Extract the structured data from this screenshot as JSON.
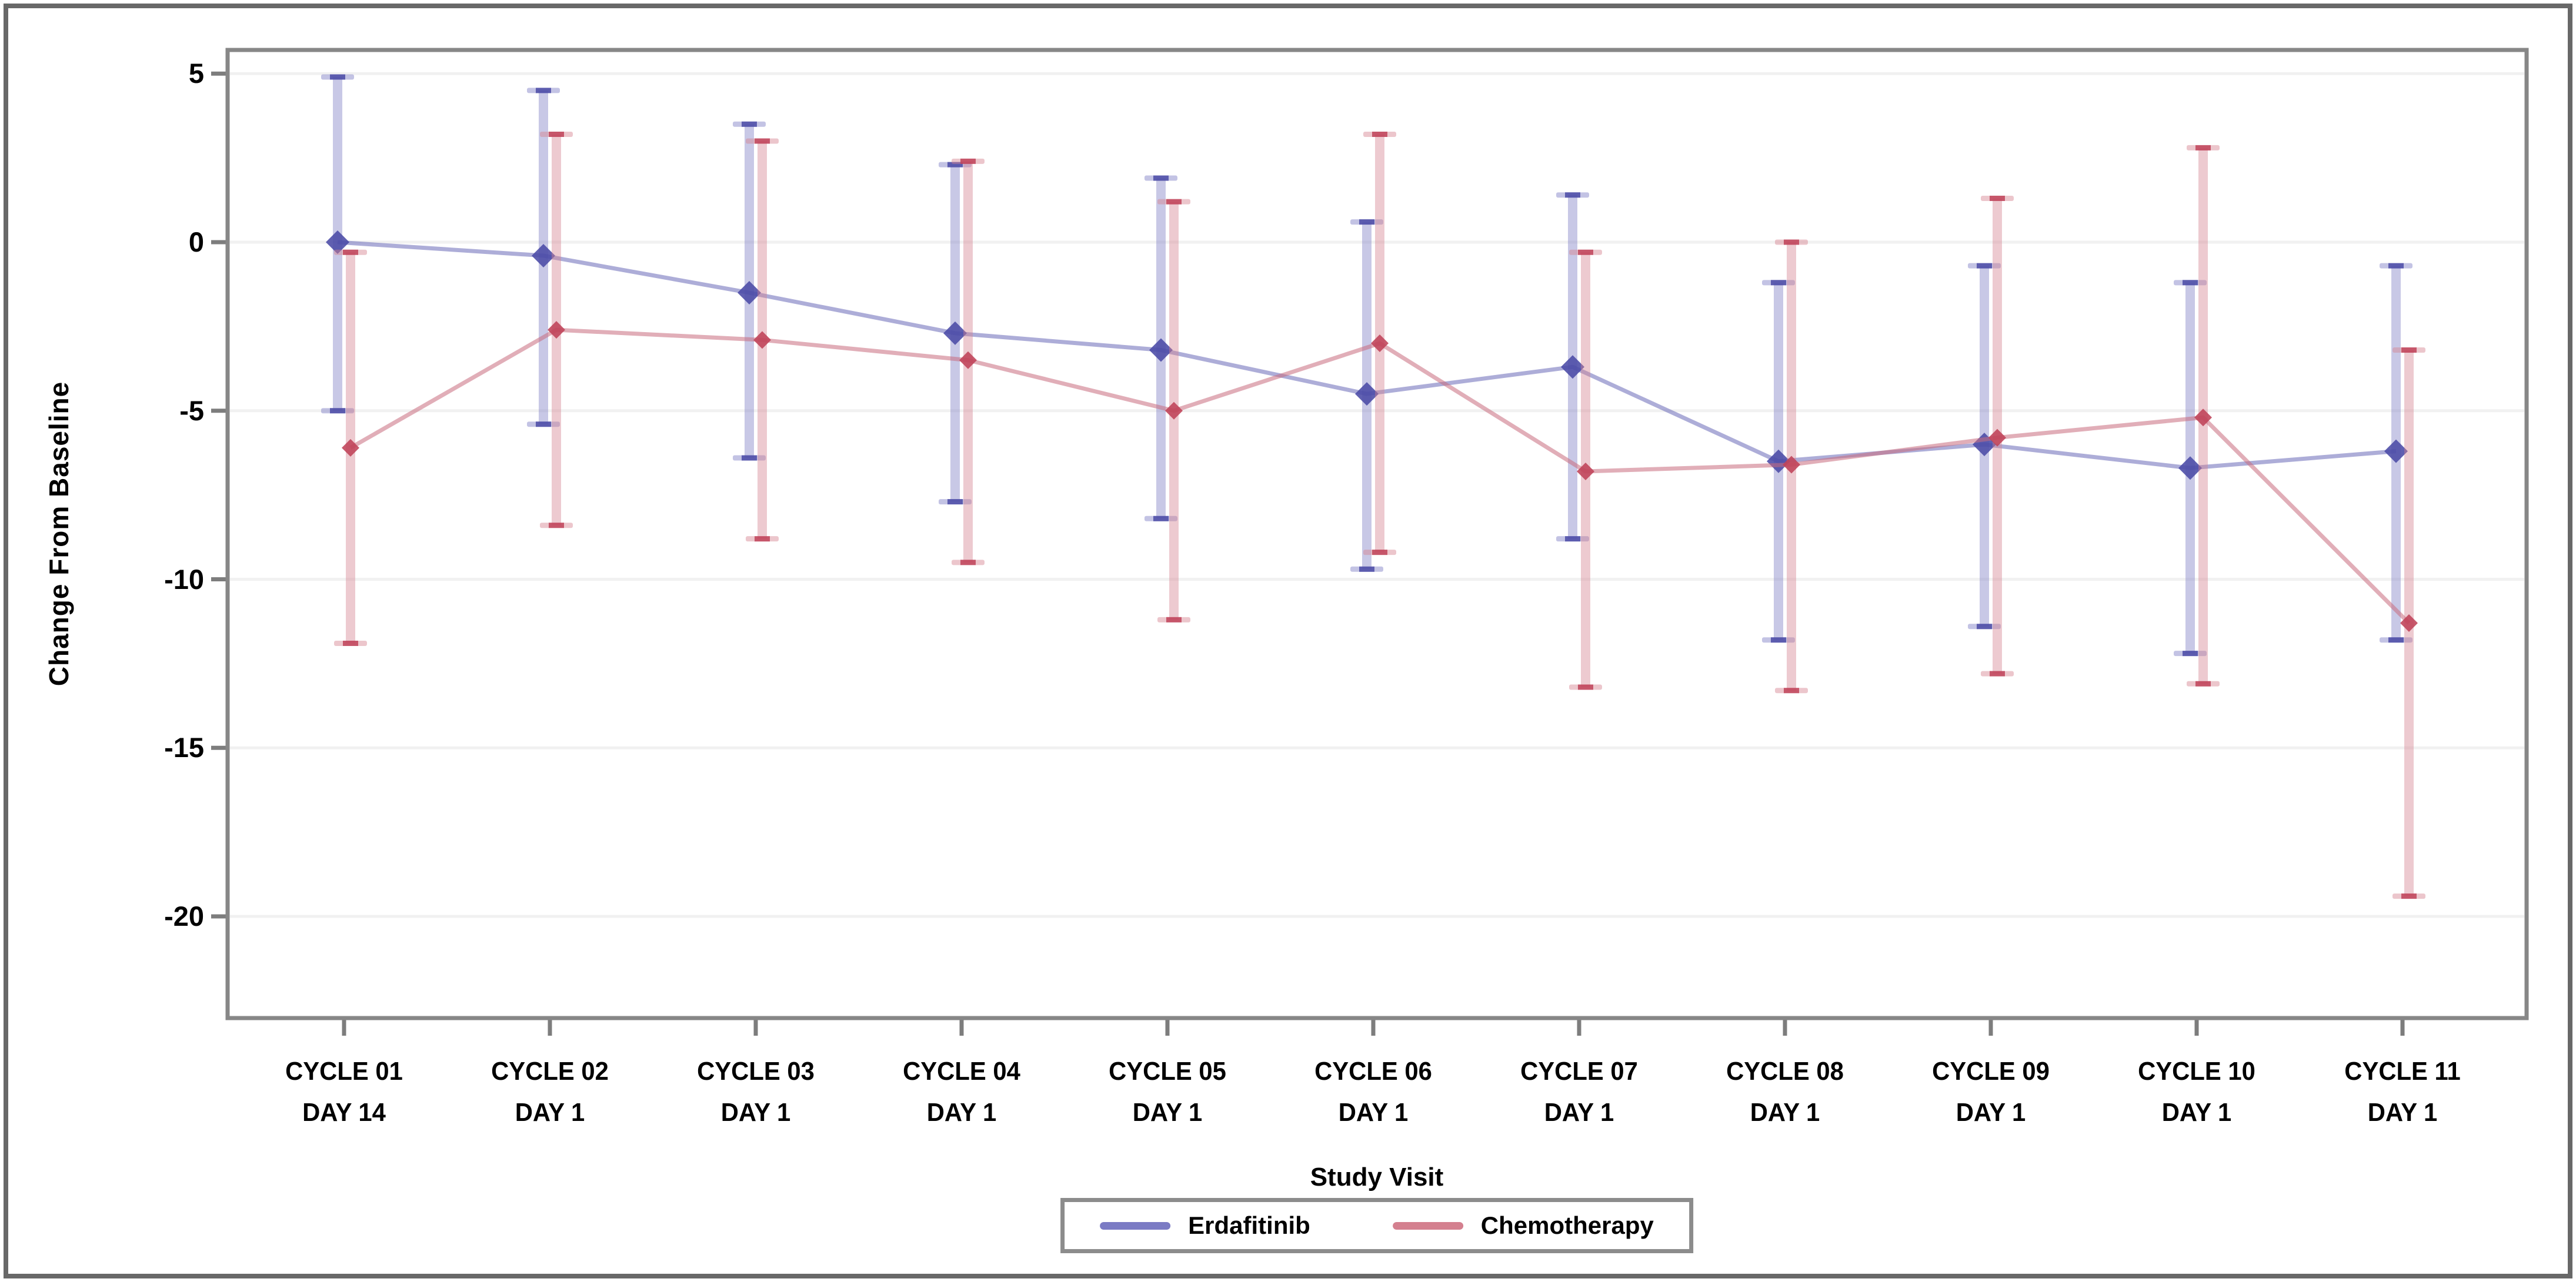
{
  "figure": {
    "background": "#ffffff",
    "outer_border_color": "#686868",
    "plot_border_color": "#878787",
    "gridline_color": "#f1f1f1",
    "tick_color": "#7d7d7d",
    "text_color": "#000000"
  },
  "chart_data": {
    "type": "line",
    "subtype": "means-with-error-bars",
    "title": "",
    "xlabel": "Study Visit",
    "ylabel": "Change From Baseline",
    "grid": true,
    "legend_position": "bottom-center",
    "ylim": [
      -23.2,
      5.7
    ],
    "y_ticks": [
      {
        "label": "5",
        "value": 5
      },
      {
        "label": "0",
        "value": 0
      },
      {
        "label": "-5",
        "value": -5
      },
      {
        "label": "-10",
        "value": -10
      },
      {
        "label": "-15",
        "value": -15
      },
      {
        "label": "-20",
        "value": -20
      }
    ],
    "categories": [
      {
        "line1": "CYCLE 01",
        "line2": "DAY 14"
      },
      {
        "line1": "CYCLE 02",
        "line2": "DAY 1"
      },
      {
        "line1": "CYCLE 03",
        "line2": "DAY 1"
      },
      {
        "line1": "CYCLE 04",
        "line2": "DAY 1"
      },
      {
        "line1": "CYCLE 05",
        "line2": "DAY 1"
      },
      {
        "line1": "CYCLE 06",
        "line2": "DAY 1"
      },
      {
        "line1": "CYCLE 07",
        "line2": "DAY 1"
      },
      {
        "line1": "CYCLE 08",
        "line2": "DAY 1"
      },
      {
        "line1": "CYCLE 09",
        "line2": "DAY 1"
      },
      {
        "line1": "CYCLE 10",
        "line2": "DAY 1"
      },
      {
        "line1": "CYCLE 11",
        "line2": "DAY 1"
      }
    ],
    "series": [
      {
        "name": "Erdafitinib",
        "color": "#7b7bc4",
        "line_color": "#6a6ab8",
        "marker_color": "#4a4aa6",
        "means": [
          0.0,
          -0.4,
          -1.5,
          -2.7,
          -3.2,
          -4.5,
          -3.7,
          -6.5,
          -6.0,
          -6.7,
          -6.2
        ],
        "ci_high": [
          4.9,
          4.5,
          3.5,
          2.3,
          1.9,
          0.6,
          1.4,
          -1.2,
          -0.7,
          -1.2,
          -0.7
        ],
        "ci_low": [
          -5.0,
          -5.4,
          -6.4,
          -7.7,
          -8.2,
          -9.7,
          -8.8,
          -11.8,
          -11.4,
          -12.2,
          -11.8
        ]
      },
      {
        "name": "Chemotherapy",
        "color": "#d4808f",
        "line_color": "#c96b7d",
        "marker_color": "#bf4258",
        "means": [
          -6.1,
          -2.6,
          -2.9,
          -3.5,
          -5.0,
          -3.0,
          -6.8,
          -6.6,
          -5.8,
          -5.2,
          -11.3
        ],
        "ci_high": [
          -0.3,
          3.2,
          3.0,
          2.4,
          1.2,
          3.2,
          -0.3,
          0.0,
          1.3,
          2.8,
          -3.2
        ],
        "ci_low": [
          -11.9,
          -8.4,
          -8.8,
          -9.5,
          -11.2,
          -9.2,
          -13.2,
          -13.3,
          -12.8,
          -13.1,
          -19.4
        ]
      }
    ]
  }
}
